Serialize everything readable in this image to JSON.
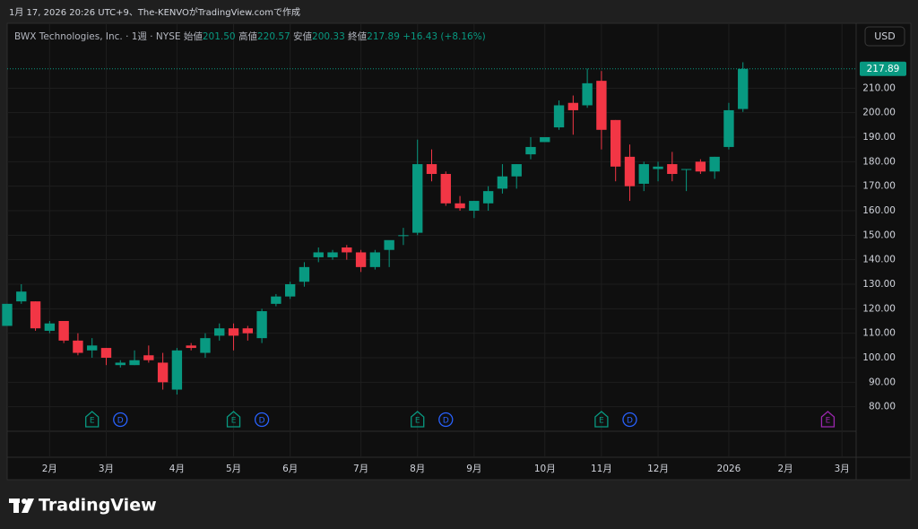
{
  "caption": "1月 17, 2026 20:26 UTC+9、The-KENVOがTradingView.comで作成",
  "currency": "USD",
  "legend": {
    "symbol": "BWX Technologies, Inc. · 1週 · NYSE",
    "open_label": "始値",
    "open": "201.50",
    "high_label": "高値",
    "high": "220.57",
    "low_label": "安値",
    "low": "200.33",
    "close_label": "終値",
    "close": "217.89",
    "change": "+16.43 (+8.16%)"
  },
  "logo": "TradingView",
  "chart_data": {
    "type": "candlestick",
    "up_color": "#089981",
    "down_color": "#f23645",
    "open": [
      113,
      123,
      123,
      111,
      115,
      107,
      103,
      104,
      97,
      97,
      101,
      98,
      87,
      105,
      102,
      109,
      112,
      112,
      108,
      122,
      125,
      131,
      141,
      141,
      145,
      143,
      137,
      144,
      150,
      151,
      179,
      175,
      163,
      160,
      163,
      169,
      174,
      183,
      188,
      194,
      204,
      203,
      213,
      197,
      182,
      171,
      177,
      179,
      177,
      180,
      176,
      186,
      201.5
    ],
    "high": [
      122,
      130,
      123,
      115,
      115,
      110,
      108,
      104,
      99,
      103,
      105,
      102,
      104,
      106,
      110,
      114,
      114,
      113,
      120,
      126,
      131,
      139,
      145,
      144,
      146,
      144,
      144,
      147,
      153,
      189,
      185,
      176,
      166,
      164,
      170,
      179,
      179,
      190,
      190,
      205,
      207,
      218,
      217,
      197,
      187,
      180,
      180,
      184,
      177,
      181,
      182,
      204,
      220.57
    ],
    "low": [
      113,
      122,
      111,
      110,
      106,
      101,
      100,
      97,
      96,
      97,
      98,
      87,
      85,
      103,
      100,
      107,
      103,
      107,
      106,
      121,
      124,
      129,
      139,
      140,
      140,
      135,
      136,
      137,
      146,
      150,
      172,
      162,
      160,
      157,
      160,
      167,
      169,
      181,
      188,
      193,
      191,
      202,
      185,
      172,
      164,
      168,
      172,
      172,
      168,
      175,
      173,
      185,
      200.33
    ],
    "close": [
      122,
      127,
      112,
      114,
      107,
      102,
      105,
      100,
      98,
      99,
      99,
      90,
      103,
      104,
      108,
      112,
      109,
      110,
      119,
      125,
      130,
      137,
      143,
      143,
      143,
      137,
      143,
      148,
      150,
      179,
      175,
      163,
      161,
      164,
      168,
      174,
      179,
      186,
      190,
      203,
      201,
      212,
      193,
      178,
      170,
      179,
      178,
      175,
      177,
      176,
      182,
      201,
      217.89
    ],
    "xlim": [
      0,
      60
    ],
    "xticks": [
      {
        "value": 3,
        "label": "2月"
      },
      {
        "value": 7,
        "label": "3月"
      },
      {
        "value": 12,
        "label": "4月"
      },
      {
        "value": 16,
        "label": "5月"
      },
      {
        "value": 20,
        "label": "6月"
      },
      {
        "value": 25,
        "label": "7月"
      },
      {
        "value": 29,
        "label": "8月"
      },
      {
        "value": 33,
        "label": "9月"
      },
      {
        "value": 38,
        "label": "10月"
      },
      {
        "value": 42,
        "label": "11月"
      },
      {
        "value": 46,
        "label": "12月"
      },
      {
        "value": 51,
        "label": "2026"
      },
      {
        "value": 55,
        "label": "2月"
      },
      {
        "value": 59,
        "label": "3月"
      }
    ],
    "ylim": [
      70,
      235
    ],
    "yticks": [
      {
        "value": 80,
        "label": "80.00"
      },
      {
        "value": 90,
        "label": "90.00"
      },
      {
        "value": 100,
        "label": "100.00"
      },
      {
        "value": 110,
        "label": "110.00"
      },
      {
        "value": 120,
        "label": "120.00"
      },
      {
        "value": 130,
        "label": "130.00"
      },
      {
        "value": 140,
        "label": "140.00"
      },
      {
        "value": 150,
        "label": "150.00"
      },
      {
        "value": 160,
        "label": "160.00"
      },
      {
        "value": 170,
        "label": "170.00"
      },
      {
        "value": 180,
        "label": "180.00"
      },
      {
        "value": 190,
        "label": "190.00"
      },
      {
        "value": 200,
        "label": "200.00"
      },
      {
        "value": 210,
        "label": "210.00"
      }
    ],
    "grid": true,
    "events": [
      {
        "label": "E",
        "x": 6,
        "color": "#089981"
      },
      {
        "label": "D",
        "x": 8,
        "color": "#2962ff"
      },
      {
        "label": "E",
        "x": 16,
        "color": "#089981"
      },
      {
        "label": "D",
        "x": 18,
        "color": "#2962ff"
      },
      {
        "label": "E",
        "x": 29,
        "color": "#089981"
      },
      {
        "label": "D",
        "x": 31,
        "color": "#2962ff"
      },
      {
        "label": "E",
        "x": 42,
        "color": "#089981"
      },
      {
        "label": "D",
        "x": 44,
        "color": "#2962ff"
      },
      {
        "label": "E",
        "x": 58,
        "color": "#9c27b0"
      }
    ]
  }
}
